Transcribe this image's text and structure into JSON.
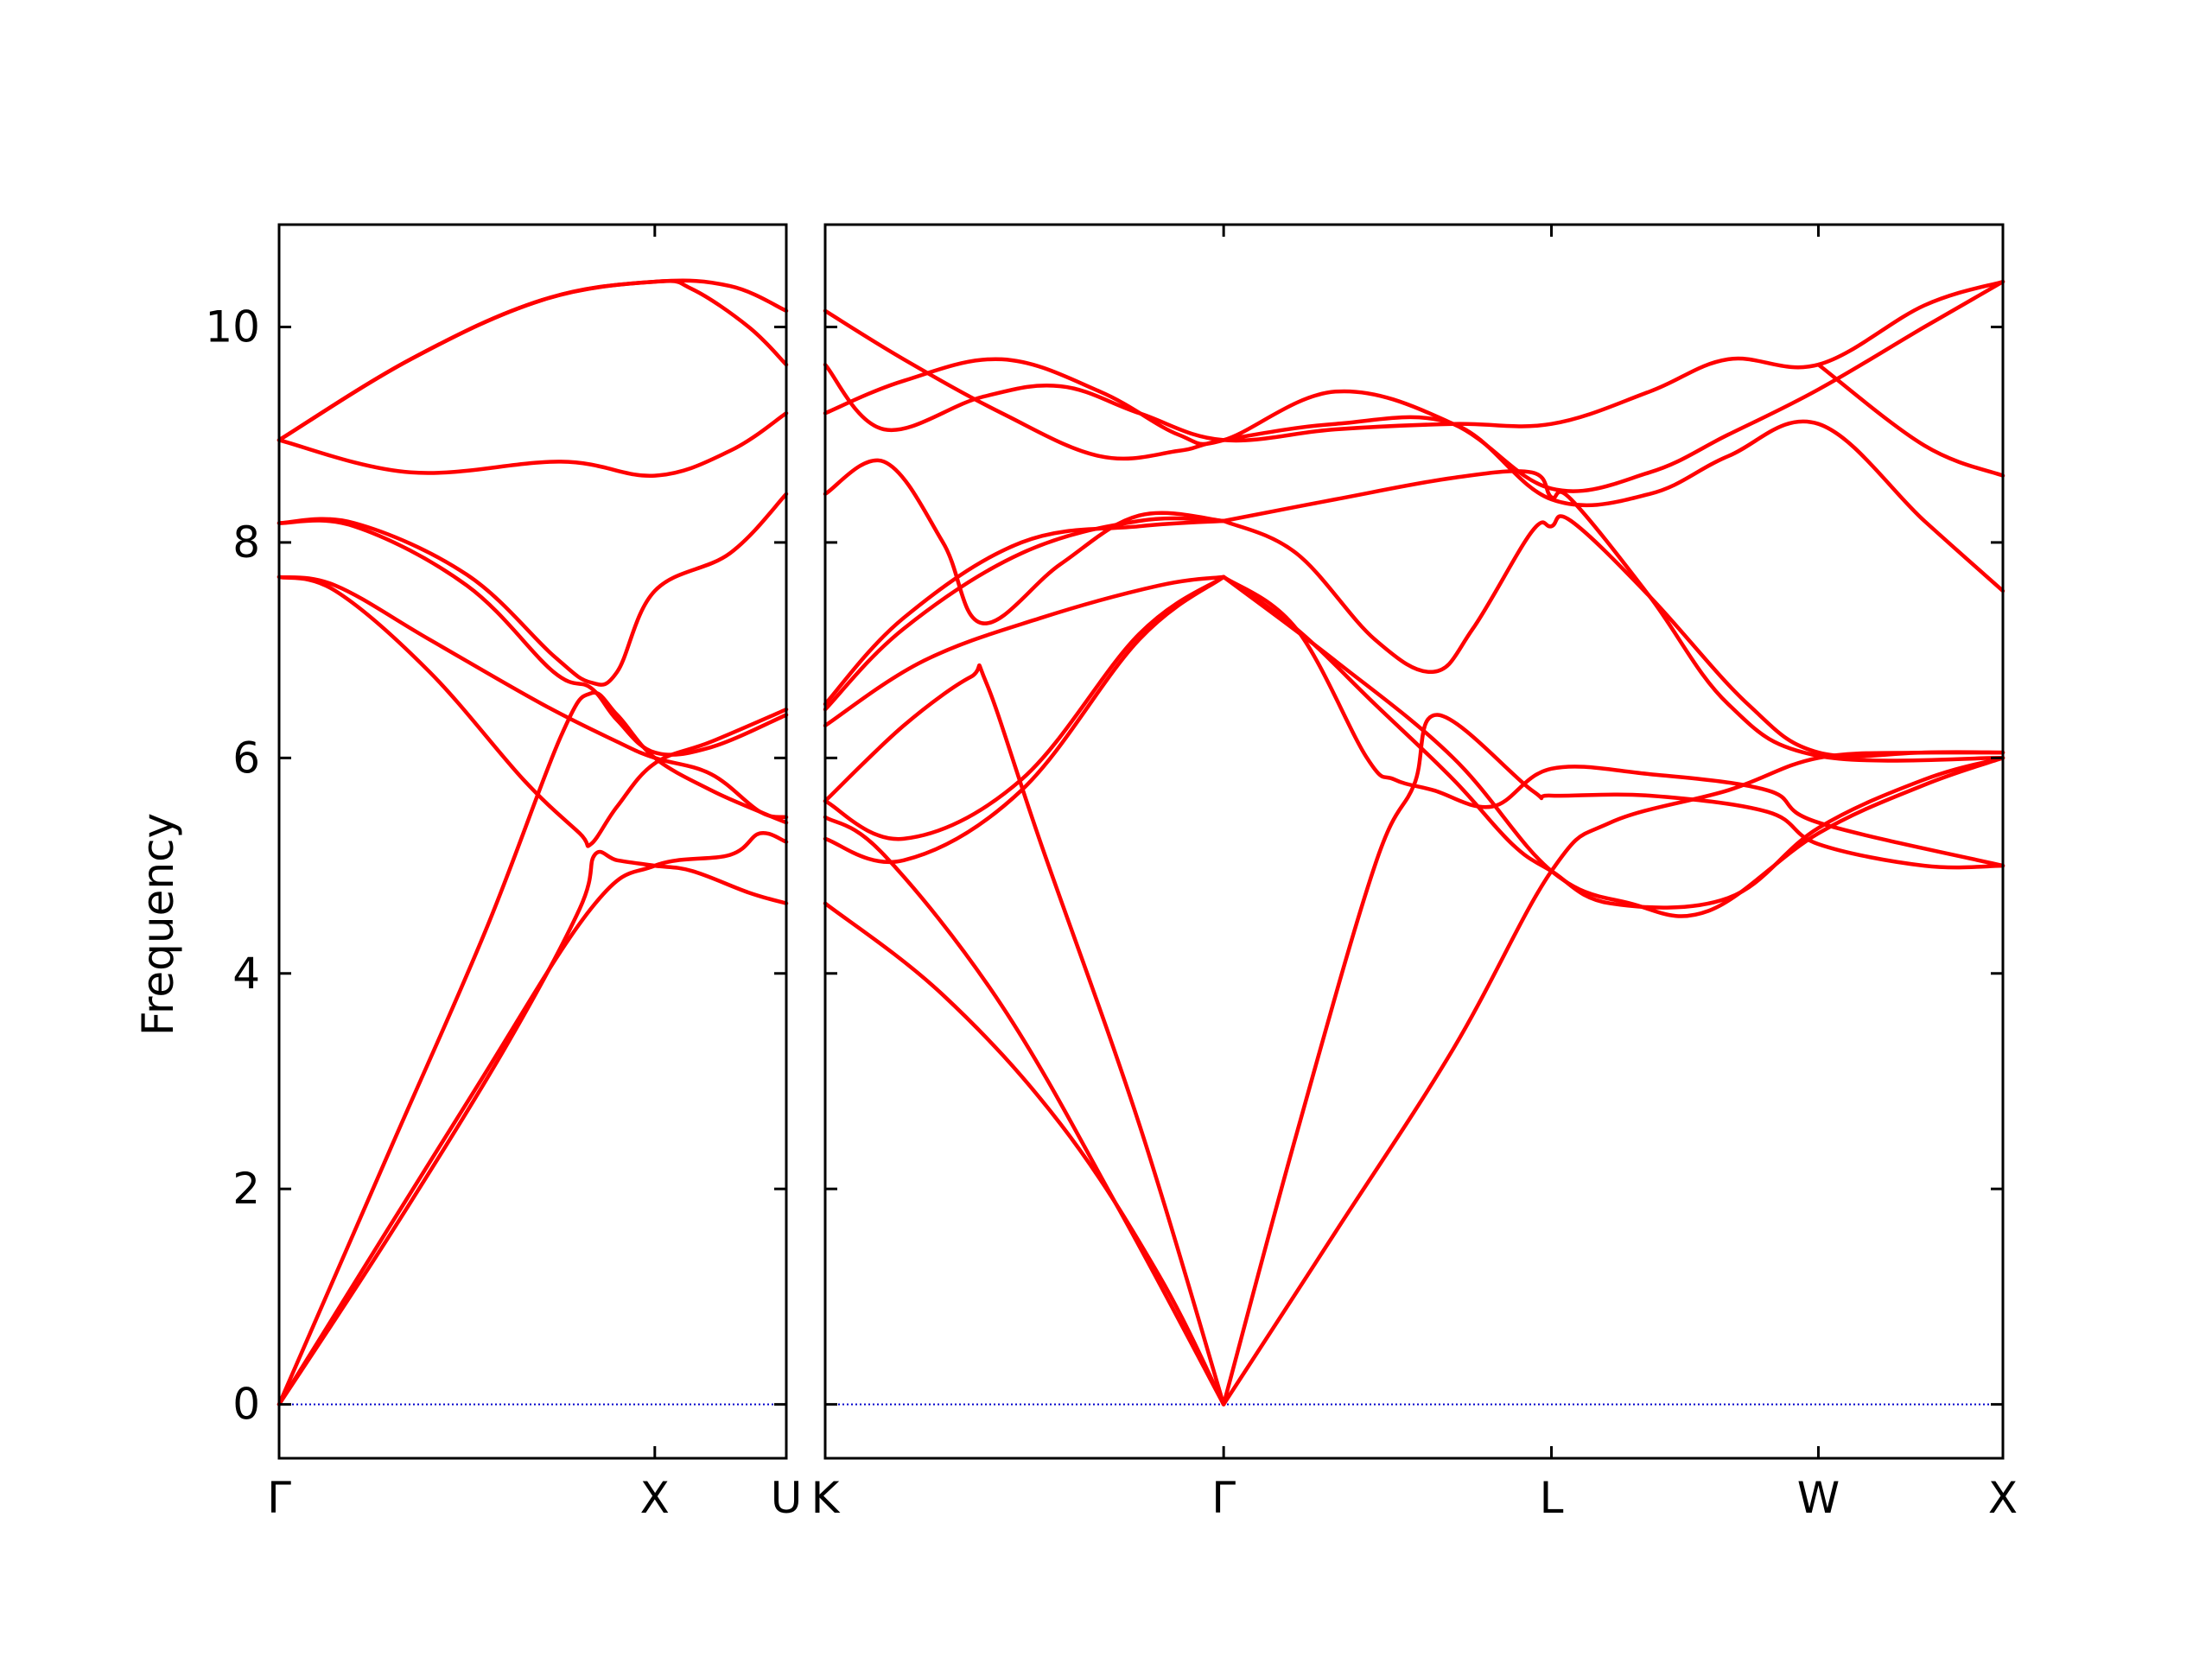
{
  "chart_data": {
    "type": "line",
    "ylabel": "Frequency",
    "ylim": [
      -0.5,
      10.95
    ],
    "yticks": [
      0,
      2,
      4,
      6,
      8,
      10
    ],
    "ytick_labels": [
      "0",
      "2",
      "4",
      "6",
      "8",
      "10"
    ],
    "grid": false,
    "series_color": "#ff0000",
    "zero_line_color": "#0000cc",
    "panels": [
      {
        "name": "left",
        "xlim": [
          0,
          1.35
        ],
        "ticks": [
          {
            "x": 0,
            "label": "Γ"
          },
          {
            "x": 1.0,
            "label": "X"
          },
          {
            "x": 1.35,
            "label": "U"
          }
        ],
        "series": [
          {
            "x": [
              0,
              0.3,
              0.55,
              0.75,
              0.83,
              0.9,
              1.0,
              1.15,
              1.28,
              1.35
            ],
            "y": [
              0,
              2.4,
              4.4,
              6.2,
              6.6,
              6.4,
              6.0,
              5.7,
              5.5,
              5.4
            ]
          },
          {
            "x": [
              0,
              0.3,
              0.6,
              0.8,
              0.84,
              0.9,
              1.0,
              1.1,
              1.25,
              1.35
            ],
            "y": [
              0,
              1.6,
              3.3,
              4.6,
              5.1,
              5.05,
              5.0,
              4.95,
              4.75,
              4.65
            ]
          },
          {
            "x": [
              0,
              0.15,
              0.4,
              0.65,
              0.8,
              0.83,
              0.9,
              1.0,
              1.15,
              1.35
            ],
            "y": [
              7.68,
              7.55,
              6.8,
              5.8,
              5.3,
              5.2,
              5.55,
              5.95,
              6.15,
              6.45
            ]
          },
          {
            "x": [
              0,
              0.15,
              0.4,
              0.7,
              0.9,
              1.0,
              1.15,
              1.28,
              1.35
            ],
            "y": [
              7.68,
              7.6,
              7.1,
              6.5,
              6.15,
              6.0,
              5.85,
              5.5,
              5.45
            ]
          },
          {
            "x": [
              0,
              0.2,
              0.5,
              0.73,
              0.83,
              0.9,
              1.0,
              1.15,
              1.35
            ],
            "y": [
              8.18,
              8.15,
              7.6,
              6.8,
              6.65,
              6.35,
              6.05,
              6.1,
              6.4
            ]
          },
          {
            "x": [
              0,
              0.2,
              0.5,
              0.73,
              0.83,
              0.9,
              1.0,
              1.2,
              1.35
            ],
            "y": [
              8.18,
              8.18,
              7.7,
              6.95,
              6.7,
              6.8,
              7.55,
              7.9,
              8.45
            ]
          },
          {
            "x": [
              0,
              0.35,
              0.75,
              1.0,
              1.2,
              1.35
            ],
            "y": [
              8.95,
              8.65,
              8.75,
              8.62,
              8.85,
              9.2
            ]
          },
          {
            "x": [
              0,
              0.35,
              0.7,
              1.0,
              1.2,
              1.35
            ],
            "y": [
              8.95,
              9.7,
              10.25,
              10.42,
              10.38,
              10.15
            ]
          },
          {
            "x": [
              0,
              0.35,
              0.7,
              1.0,
              1.1,
              1.25,
              1.35
            ],
            "y": [
              8.95,
              9.7,
              10.25,
              10.42,
              10.35,
              10.0,
              9.65
            ]
          },
          {
            "x": [
              0,
              0.5,
              0.83,
              1.0,
              1.2,
              1.28,
              1.35
            ],
            "y": [
              0,
              2.8,
              4.6,
              5.0,
              5.1,
              5.3,
              5.22
            ]
          }
        ]
      },
      {
        "name": "right",
        "xlim": [
          0,
          3.0
        ],
        "ticks": [
          {
            "x": 0,
            "label": "K"
          },
          {
            "x": 1.015,
            "label": "Γ"
          },
          {
            "x": 1.85,
            "label": "L"
          },
          {
            "x": 2.53,
            "label": "W"
          },
          {
            "x": 3.0,
            "label": "X"
          }
        ],
        "series": [
          {
            "x": [
              0,
              0.3,
              0.6,
              0.85,
              1.015
            ],
            "y": [
              4.65,
              3.8,
              2.6,
              1.2,
              0
            ]
          },
          {
            "x": [
              0,
              0.15,
              0.45,
              0.75,
              1.015
            ],
            "y": [
              5.45,
              5.1,
              3.7,
              1.8,
              0
            ]
          },
          {
            "x": [
              0,
              0.2,
              0.37,
              0.41,
              0.55,
              0.8,
              1.015
            ],
            "y": [
              5.6,
              6.3,
              6.75,
              6.7,
              5.2,
              2.6,
              0
            ]
          },
          {
            "x": [
              0,
              0.2,
              0.5,
              0.8,
              1.015
            ],
            "y": [
              5.25,
              5.05,
              5.7,
              7.1,
              7.68
            ]
          },
          {
            "x": [
              0,
              0.2,
              0.5,
              0.8,
              1.015
            ],
            "y": [
              5.6,
              5.25,
              5.8,
              7.15,
              7.68
            ]
          },
          {
            "x": [
              1.015,
              1.2,
              1.4,
              1.5,
              1.56,
              1.8,
              1.85,
              2.1,
              2.4,
              2.53,
              2.8,
              3.0
            ],
            "y": [
              0,
              2.5,
              5.0,
              5.75,
              6.4,
              5.7,
              5.65,
              5.65,
              5.5,
              5.2,
              5.0,
              5.0
            ]
          },
          {
            "x": [
              1.015,
              1.3,
              1.6,
              1.85,
              2.0,
              2.3,
              2.53,
              2.8,
              3.0
            ],
            "y": [
              0,
              1.6,
              3.3,
              4.95,
              5.4,
              5.7,
              6.0,
              6.05,
              6.05
            ]
          },
          {
            "x": [
              1.015,
              1.2,
              1.38,
              1.45,
              1.55,
              1.7,
              1.85,
              2.1,
              2.4,
              2.53,
              3.0
            ],
            "y": [
              7.68,
              7.2,
              6.0,
              5.8,
              5.7,
              5.55,
              5.9,
              5.85,
              5.7,
              5.4,
              5.0
            ]
          },
          {
            "x": [
              1.015,
              1.2,
              1.4,
              1.6,
              1.75,
              1.85,
              2.0,
              2.3,
              2.53,
              2.8,
              3.0
            ],
            "y": [
              7.68,
              7.2,
              6.5,
              5.8,
              5.2,
              4.95,
              4.65,
              4.7,
              5.35,
              5.8,
              6.0
            ]
          },
          {
            "x": [
              1.015,
              1.3,
              1.6,
              1.85,
              2.05,
              2.25,
              2.53,
              2.8,
              3.0
            ],
            "y": [
              7.68,
              6.9,
              6.0,
              4.95,
              4.65,
              4.58,
              5.3,
              5.75,
              6.0
            ]
          },
          {
            "x": [
              1.015,
              1.2,
              1.4,
              1.55,
              1.65,
              1.8,
              1.85,
              1.9,
              2.1,
              2.35,
              2.53,
              2.8,
              3.0
            ],
            "y": [
              8.2,
              7.9,
              7.1,
              6.8,
              7.2,
              8.1,
              8.15,
              8.2,
              7.5,
              6.5,
              6.05,
              6.05,
              6.05
            ]
          },
          {
            "x": [
              1.015,
              1.3,
              1.6,
              1.8,
              1.85,
              1.9,
              2.1,
              2.3,
              2.53,
              3.0
            ],
            "y": [
              8.2,
              8.4,
              8.6,
              8.65,
              8.42,
              8.4,
              7.5,
              6.5,
              6.02,
              6.0
            ]
          },
          {
            "x": [
              0,
              0.2,
              0.5,
              0.8,
              1.015
            ],
            "y": [
              6.5,
              7.3,
              8.0,
              8.15,
              8.2
            ]
          },
          {
            "x": [
              0,
              0.2,
              0.5,
              0.8,
              1.015
            ],
            "y": [
              6.45,
              7.2,
              7.9,
              8.2,
              8.2
            ]
          },
          {
            "x": [
              0,
              0.25,
              0.55,
              0.85,
              1.015
            ],
            "y": [
              6.3,
              6.9,
              7.3,
              7.6,
              7.68
            ]
          },
          {
            "x": [
              0,
              0.15,
              0.3,
              0.4,
              0.6,
              0.8,
              1.015
            ],
            "y": [
              8.45,
              8.75,
              8.0,
              7.25,
              7.8,
              8.25,
              8.2
            ]
          },
          {
            "x": [
              0,
              0.15,
              0.4,
              0.6,
              0.8,
              1.015,
              1.3,
              1.6,
              1.85,
              2.1,
              2.3,
              2.53,
              2.8,
              3.0
            ],
            "y": [
              9.65,
              9.05,
              9.35,
              9.45,
              9.2,
              8.95,
              9.05,
              9.1,
              9.1,
              9.4,
              9.7,
              9.65,
              10.2,
              10.42
            ]
          },
          {
            "x": [
              0,
              0.2,
              0.45,
              0.7,
              0.9,
              1.015,
              1.3,
              1.6,
              1.85,
              2.1,
              2.3,
              2.53,
              2.8,
              3.0
            ],
            "y": [
              9.2,
              9.5,
              9.7,
              9.4,
              9.0,
              8.95,
              9.4,
              9.1,
              8.5,
              8.65,
              9.0,
              9.42,
              10.0,
              10.42
            ]
          },
          {
            "x": [
              0,
              0.2,
              0.45,
              0.7,
              0.9,
              1.015,
              1.3,
              1.6,
              1.85,
              2.1,
              2.3,
              2.53,
              2.8,
              3.0
            ],
            "y": [
              10.15,
              9.7,
              9.2,
              8.8,
              8.85,
              8.95,
              9.1,
              9.1,
              8.4,
              8.45,
              8.8,
              9.1,
              8.2,
              7.55
            ]
          },
          {
            "x": [
              2.53,
              2.8,
              3.0
            ],
            "y": [
              9.65,
              8.9,
              8.62
            ]
          }
        ]
      }
    ]
  }
}
